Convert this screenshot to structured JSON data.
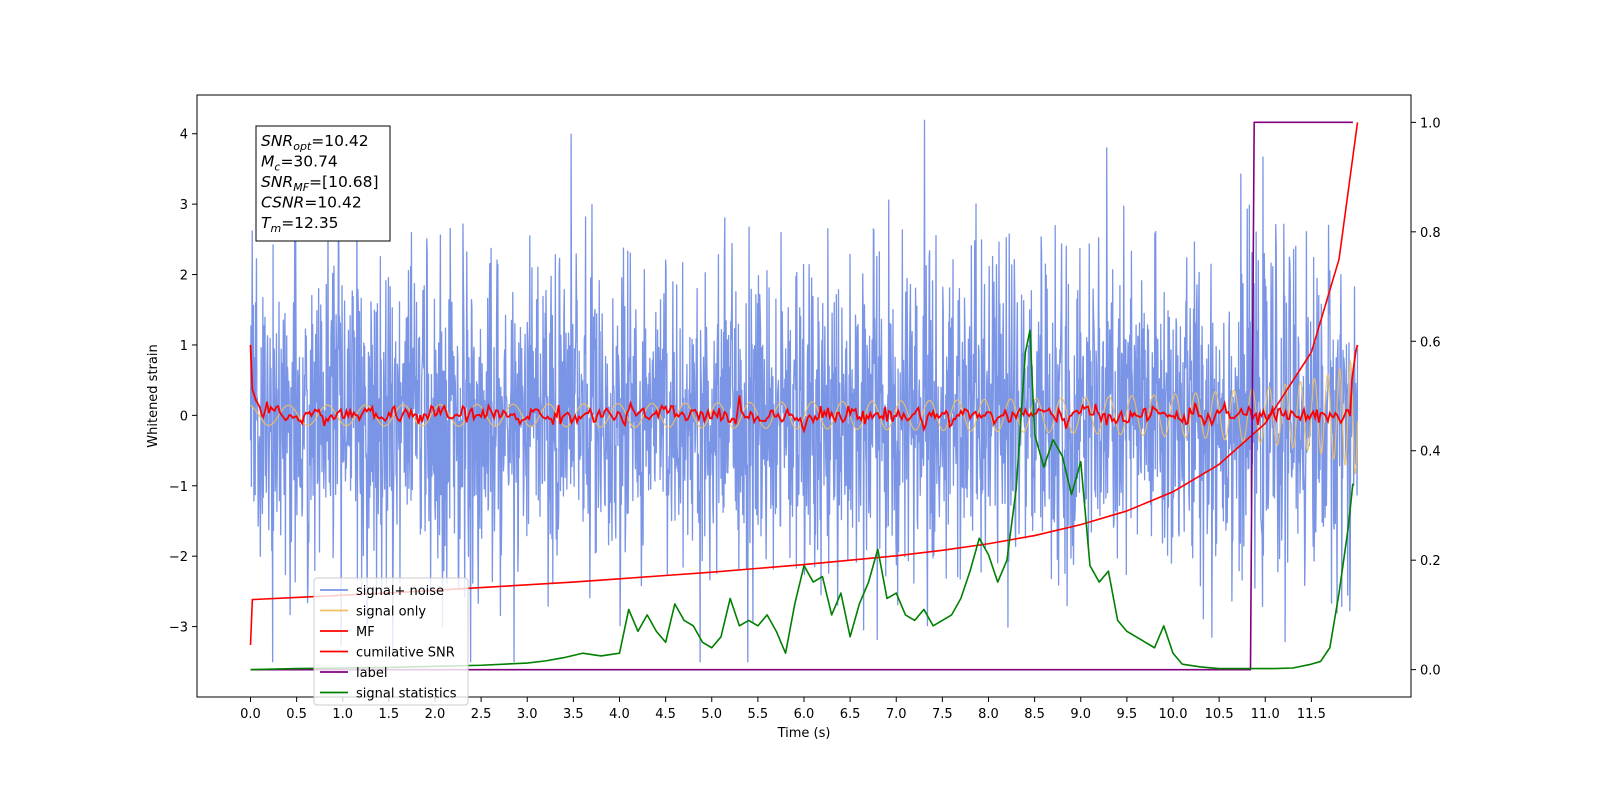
{
  "chart_data": {
    "type": "line",
    "title": "",
    "xlabel": "Time (s)",
    "ylabel": "Whitened strain",
    "ylabel_right": "",
    "xlim": [
      -0.58,
      12.58
    ],
    "ylim": [
      -4.0,
      4.55
    ],
    "ylim_right": [
      -0.05,
      1.05
    ],
    "x_ticks": [
      0.0,
      0.5,
      1.0,
      1.5,
      2.0,
      2.5,
      3.0,
      3.5,
      4.0,
      4.5,
      5.0,
      5.5,
      6.0,
      6.5,
      7.0,
      7.5,
      8.0,
      8.5,
      9.0,
      9.5,
      10.0,
      10.5,
      11.0,
      11.5
    ],
    "x_tick_labels": [
      "0.0",
      "0.5",
      "1.0",
      "1.5",
      "2.0",
      "2.5",
      "3.0",
      "3.5",
      "4.0",
      "4.5",
      "5.0",
      "5.5",
      "6.0",
      "6.5",
      "7.0",
      "7.5",
      "8.0",
      "8.5",
      "9.0",
      "9.5",
      "10.0",
      "10.5",
      "11.0",
      "11.5"
    ],
    "y_ticks": [
      -3,
      -2,
      -1,
      0,
      1,
      2,
      3,
      4
    ],
    "y_tick_labels": [
      "−3",
      "−2",
      "−1",
      "0",
      "1",
      "2",
      "3",
      "4"
    ],
    "y_ticks_right": [
      0.0,
      0.2,
      0.4,
      0.6,
      0.8,
      1.0
    ],
    "y_tick_labels_right": [
      "0.0",
      "0.2",
      "0.4",
      "0.6",
      "0.8",
      "1.0"
    ],
    "grid": false,
    "legend_position": "lower-left",
    "info_box": {
      "lines": [
        {
          "main": "SNR",
          "sub": "opt",
          "value": "=10.42"
        },
        {
          "main": "M",
          "sub": "c",
          "value": "=30.74"
        },
        {
          "main": "SNR",
          "sub": "MF",
          "value": "=[10.68]"
        },
        {
          "main": "CSNR",
          "sub": "",
          "value": "=10.42"
        },
        {
          "main": "T",
          "sub": "m",
          "value": "=12.35"
        }
      ]
    },
    "series": [
      {
        "name": "signal+ noise",
        "color": "#7a94e6",
        "axis": "left",
        "kind": "noise",
        "x_range": [
          0.0,
          12.0
        ],
        "amplitude_band": [
          -3.5,
          4.2
        ]
      },
      {
        "name": "signal only",
        "color": "#f0c060",
        "axis": "left",
        "kind": "chirp",
        "x_range": [
          0.0,
          12.0
        ],
        "end_amplitude": 0.85
      },
      {
        "name": "MF",
        "color": "#ff0000",
        "axis": "left",
        "kind": "jitter",
        "x_range": [
          0.0,
          12.0
        ],
        "start_value": 1.0,
        "end_value": 1.0
      },
      {
        "name": "cumilative SNR",
        "color": "#ff0000",
        "axis": "right",
        "x": [
          0.0,
          0.02,
          0.5,
          1.0,
          1.5,
          2.0,
          2.5,
          3.0,
          3.5,
          4.0,
          4.5,
          5.0,
          5.5,
          6.0,
          6.5,
          7.0,
          7.5,
          8.0,
          8.5,
          9.0,
          9.5,
          10.0,
          10.5,
          11.0,
          11.5,
          11.8,
          12.0
        ],
        "y": [
          0.045,
          0.128,
          0.132,
          0.136,
          0.14,
          0.145,
          0.15,
          0.155,
          0.16,
          0.166,
          0.172,
          0.178,
          0.185,
          0.192,
          0.2,
          0.208,
          0.218,
          0.23,
          0.245,
          0.265,
          0.29,
          0.325,
          0.375,
          0.45,
          0.58,
          0.75,
          1.0
        ]
      },
      {
        "name": "label",
        "color": "#800080",
        "axis": "right",
        "x": [
          0.0,
          10.84,
          10.88,
          11.95
        ],
        "y": [
          0.0,
          0.0,
          1.0,
          1.0
        ]
      },
      {
        "name": "signal statistics",
        "color": "#008000",
        "axis": "right",
        "x": [
          0.0,
          0.5,
          1.0,
          1.5,
          2.0,
          2.5,
          3.0,
          3.2,
          3.4,
          3.6,
          3.8,
          4.0,
          4.1,
          4.2,
          4.3,
          4.4,
          4.5,
          4.6,
          4.7,
          4.8,
          4.9,
          5.0,
          5.1,
          5.2,
          5.3,
          5.4,
          5.5,
          5.6,
          5.7,
          5.8,
          5.9,
          6.0,
          6.1,
          6.2,
          6.3,
          6.4,
          6.5,
          6.6,
          6.7,
          6.8,
          6.9,
          7.0,
          7.1,
          7.2,
          7.3,
          7.4,
          7.5,
          7.6,
          7.7,
          7.8,
          7.9,
          8.0,
          8.1,
          8.2,
          8.3,
          8.4,
          8.45,
          8.5,
          8.6,
          8.7,
          8.8,
          8.9,
          9.0,
          9.1,
          9.2,
          9.3,
          9.4,
          9.5,
          9.6,
          9.7,
          9.8,
          9.9,
          10.0,
          10.1,
          10.3,
          10.5,
          10.7,
          10.9,
          11.1,
          11.3,
          11.5,
          11.6,
          11.7,
          11.8,
          11.9,
          11.95
        ],
        "y": [
          0.0,
          0.002,
          0.003,
          0.004,
          0.006,
          0.008,
          0.012,
          0.016,
          0.022,
          0.03,
          0.025,
          0.03,
          0.11,
          0.07,
          0.1,
          0.07,
          0.05,
          0.12,
          0.09,
          0.08,
          0.05,
          0.04,
          0.06,
          0.13,
          0.08,
          0.09,
          0.08,
          0.1,
          0.07,
          0.03,
          0.12,
          0.19,
          0.16,
          0.17,
          0.1,
          0.14,
          0.06,
          0.12,
          0.16,
          0.22,
          0.13,
          0.14,
          0.1,
          0.09,
          0.11,
          0.08,
          0.09,
          0.1,
          0.13,
          0.18,
          0.24,
          0.21,
          0.16,
          0.2,
          0.33,
          0.58,
          0.62,
          0.43,
          0.37,
          0.42,
          0.39,
          0.32,
          0.38,
          0.19,
          0.16,
          0.18,
          0.09,
          0.07,
          0.06,
          0.05,
          0.04,
          0.08,
          0.03,
          0.01,
          0.005,
          0.002,
          0.002,
          0.002,
          0.002,
          0.003,
          0.01,
          0.015,
          0.04,
          0.14,
          0.26,
          0.34
        ]
      }
    ]
  }
}
